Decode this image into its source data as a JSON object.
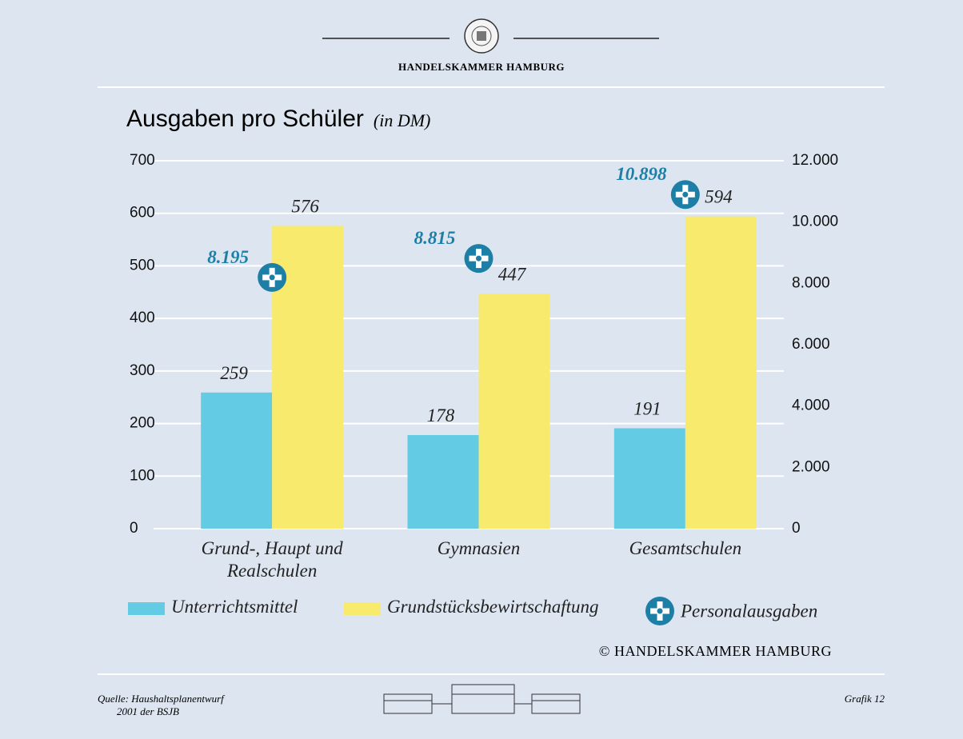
{
  "header": {
    "brand": "HANDELSKAMMER HAMBURG"
  },
  "chart_data": {
    "type": "bar",
    "title": "Ausgaben pro Schüler",
    "subtitle": "(in DM)",
    "categories": [
      "Grund-, Haupt und Realschulen",
      "Gymnasien",
      "Gesamtschulen"
    ],
    "series": [
      {
        "name": "Unterrichtsmittel",
        "color": "#63cbe4",
        "values": [
          259,
          178,
          191
        ]
      },
      {
        "name": "Grundstücksbewirtschaftung",
        "color": "#f7ea6c",
        "values": [
          576,
          447,
          594
        ]
      },
      {
        "name": "Personalausgaben",
        "color": "#1e7fa6",
        "type": "scatter",
        "axis": "y2",
        "values": [
          8195,
          8815,
          10898
        ],
        "value_labels": [
          "8.195",
          "8.815",
          "10.898"
        ]
      }
    ],
    "ylim": [
      0,
      700
    ],
    "yticks": [
      0,
      100,
      200,
      300,
      400,
      500,
      600,
      700
    ],
    "y2lim": [
      0,
      12000
    ],
    "y2ticks": [
      0,
      {
        "value": 2000,
        "label": "2.000"
      },
      {
        "value": 4000,
        "label": "4.000"
      },
      {
        "value": 6000,
        "label": "6.000"
      },
      {
        "value": 8000,
        "label": "8.000"
      },
      {
        "value": 10000,
        "label": "10.000"
      },
      {
        "value": 12000,
        "label": "12.000"
      }
    ],
    "grid": true
  },
  "footer": {
    "copyright": "© HANDELSKAMMER HAMBURG",
    "source": [
      "Quelle: Haushaltsplanentwurf",
      "2001 der BSJB"
    ],
    "page": "Grafik 12"
  }
}
